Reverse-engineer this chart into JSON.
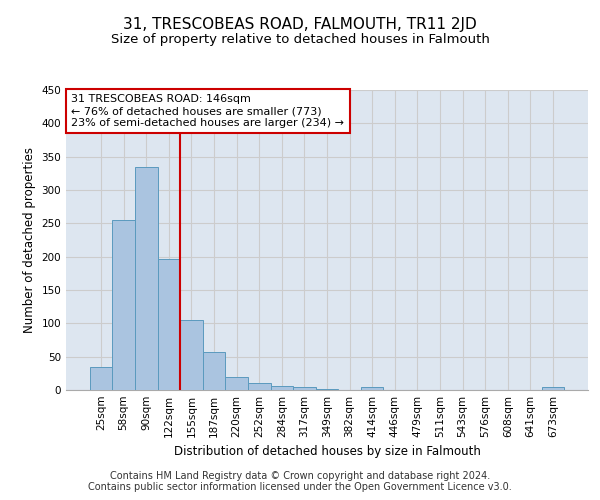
{
  "title": "31, TRESCOBEAS ROAD, FALMOUTH, TR11 2JD",
  "subtitle": "Size of property relative to detached houses in Falmouth",
  "xlabel": "Distribution of detached houses by size in Falmouth",
  "ylabel": "Number of detached properties",
  "categories": [
    "25sqm",
    "58sqm",
    "90sqm",
    "122sqm",
    "155sqm",
    "187sqm",
    "220sqm",
    "252sqm",
    "284sqm",
    "317sqm",
    "349sqm",
    "382sqm",
    "414sqm",
    "446sqm",
    "479sqm",
    "511sqm",
    "543sqm",
    "576sqm",
    "608sqm",
    "641sqm",
    "673sqm"
  ],
  "values": [
    35,
    255,
    335,
    197,
    105,
    57,
    19,
    10,
    6,
    5,
    2,
    0,
    4,
    0,
    0,
    0,
    0,
    0,
    0,
    0,
    4
  ],
  "bar_color": "#aac4e0",
  "bar_edge_color": "#5a9abe",
  "vline_color": "#cc0000",
  "annotation_box_text": "31 TRESCOBEAS ROAD: 146sqm\n← 76% of detached houses are smaller (773)\n23% of semi-detached houses are larger (234) →",
  "annotation_box_color": "#ffffff",
  "annotation_box_edge_color": "#cc0000",
  "ylim": [
    0,
    450
  ],
  "yticks": [
    0,
    50,
    100,
    150,
    200,
    250,
    300,
    350,
    400,
    450
  ],
  "grid_color": "#cccccc",
  "bg_color": "#dde6f0",
  "footer_line1": "Contains HM Land Registry data © Crown copyright and database right 2024.",
  "footer_line2": "Contains public sector information licensed under the Open Government Licence v3.0.",
  "title_fontsize": 11,
  "subtitle_fontsize": 9.5,
  "axis_label_fontsize": 8.5,
  "tick_fontsize": 7.5,
  "annotation_fontsize": 8,
  "footer_fontsize": 7
}
